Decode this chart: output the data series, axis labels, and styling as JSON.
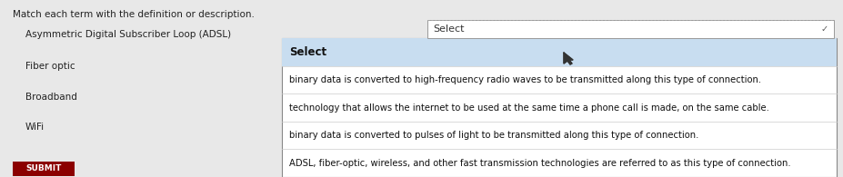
{
  "title": "Match each term with the definition or description.",
  "terms": [
    "Asymmetric Digital Subscriber Loop (ADSL)",
    "Fiber optic",
    "Broadband",
    "WiFi"
  ],
  "bg_color": "#e8e8e8",
  "title_color": "#222222",
  "term_color": "#222222",
  "title_fontsize": 7.5,
  "term_fontsize": 7.5,
  "select_box": {
    "label": "Select",
    "border_color": "#999999",
    "bg_color": "#ffffff",
    "text_color": "#333333",
    "fontsize": 8.0
  },
  "dropdown": {
    "bg_color": "#ffffff",
    "highlight_color": "#c8ddf0",
    "border_color": "#888888",
    "divider_color": "#cccccc",
    "items": [
      "Select",
      "binary data is converted to high-frequency radio waves to be transmitted along this type of connection.",
      "technology that allows the internet to be used at the same time a phone call is made, on the same cable.",
      "binary data is converted to pulses of light to be transmitted along this type of connection.",
      "ADSL, fiber-optic, wireless, and other fast transmission technologies are referred to as this type of connection."
    ],
    "item_fontsize": 7.2,
    "first_item_fontsize": 8.5,
    "first_item_bold": true,
    "text_color": "#111111"
  },
  "submit_button": {
    "label": "SUBMIT",
    "bg_color": "#8b0000",
    "text_color": "#ffffff",
    "fontsize": 6.5
  }
}
